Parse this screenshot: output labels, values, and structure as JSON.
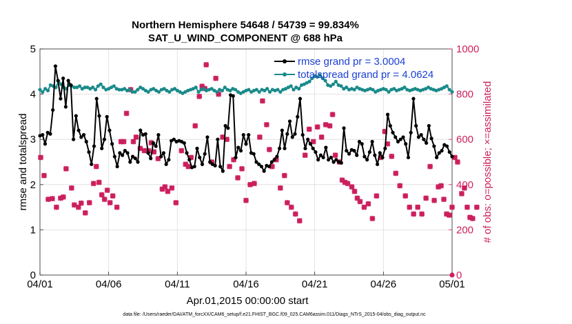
{
  "chart_data": {
    "type": "line",
    "title": "Northern Hemisphere 54648 / 54739 = 99.834%",
    "subtitle": "SAT_U_WIND_COMPONENT @ 688 hPa",
    "xlabel": "Apr.01,2015 00:00:00 start",
    "ylabel": "rmse and totalspread",
    "y2label": "# of obs: o=possible; ×=assimilated",
    "x_tick_labels": [
      "04/01",
      "04/06",
      "04/11",
      "04/16",
      "04/21",
      "04/26",
      "05/01"
    ],
    "x_range_days": [
      0,
      30
    ],
    "ylim": [
      0,
      5
    ],
    "y_ticks": [
      "0",
      "1",
      "2",
      "3",
      "4",
      "5"
    ],
    "y2lim": [
      0,
      1000
    ],
    "y2_ticks": [
      "0",
      "200",
      "400",
      "600",
      "800",
      "1000"
    ],
    "grid": true,
    "legend_position": "top-right",
    "footnote": "data file: /Users/raeder/DAI/ATM_forcXX/CAM6_setup/f.e21.FHIST_BGC.f09_025.CAM6assim.011/Diags_NTrS_2015-04/obs_diag_output.nc",
    "colors": {
      "rmse": "#000000",
      "spread": "#1a8a8a",
      "obs": "#cc1f5e",
      "legend_text": "#1a3fd6"
    },
    "series": [
      {
        "name": "rmse grand pr = 3.0004",
        "axis": "left",
        "values": [
          3.08,
          3.1,
          2.9,
          3.15,
          3.12,
          3.65,
          4.62,
          4.3,
          3.9,
          4.35,
          3.72,
          4.3,
          4.2,
          3.0,
          3.52,
          3.2,
          3.05,
          3.1,
          2.95,
          2.72,
          2.45,
          2.85,
          3.9,
          3.52,
          2.8,
          3.0,
          3.5,
          3.2,
          2.9,
          2.62,
          2.4,
          2.7,
          2.65,
          2.75,
          2.7,
          2.5,
          2.62,
          2.58,
          2.5,
          3.2,
          3.1,
          3.12,
          2.7,
          2.58,
          2.92,
          2.85,
          3.1,
          2.62,
          2.7,
          2.45,
          2.55,
          2.97,
          3.0,
          2.95,
          2.97,
          2.95,
          2.92,
          2.7,
          2.55,
          2.38,
          2.4,
          2.8,
          2.6,
          2.45,
          2.68,
          3.05,
          2.5,
          2.45,
          2.42,
          3.0,
          2.4,
          2.3,
          3.3,
          3.25,
          3.98,
          3.96,
          2.6,
          2.82,
          2.75,
          3.1,
          2.9,
          3.1,
          2.7,
          2.68,
          2.5,
          2.45,
          2.4,
          2.3,
          2.42,
          2.4,
          2.5,
          2.55,
          2.62,
          2.8,
          3.2,
          2.8,
          3.12,
          3.4,
          3.05,
          3.12,
          3.5,
          3.9,
          3.1,
          2.8,
          3.0,
          2.9,
          2.8,
          2.72,
          2.55,
          2.65,
          2.6,
          2.82,
          2.55,
          2.6,
          2.5,
          2.55,
          2.5,
          2.48,
          3.25,
          2.75,
          2.68,
          2.77,
          2.75,
          2.65,
          2.95,
          2.9,
          2.62,
          2.55,
          2.72,
          2.95,
          2.65,
          2.45,
          2.7,
          2.6,
          2.8,
          3.55,
          3.3,
          3.15,
          3.05,
          2.95,
          3.0,
          3.05,
          2.9,
          2.6,
          3.15,
          3.9,
          3.3,
          3.05,
          3.1,
          3.0,
          2.92,
          3.3,
          3.02,
          2.85,
          2.6,
          2.7,
          2.75,
          2.88,
          2.85,
          2.72,
          2.62
        ]
      },
      {
        "name": "totalspread grand pr = 4.0624",
        "axis": "left",
        "values": [
          4.1,
          4.05,
          4.12,
          4.08,
          4.2,
          4.18,
          4.15,
          4.28,
          4.22,
          4.15,
          4.12,
          4.2,
          4.18,
          4.15,
          4.15,
          4.18,
          4.12,
          4.15,
          4.15,
          4.12,
          4.15,
          4.1,
          4.18,
          4.22,
          4.15,
          4.1,
          4.12,
          4.15,
          4.18,
          4.12,
          4.1,
          4.1,
          4.12,
          4.08,
          4.1,
          4.05,
          4.05,
          4.1,
          4.15,
          4.12,
          4.08,
          4.05,
          4.1,
          4.12,
          4.08,
          4.05,
          4.1,
          4.12,
          4.08,
          4.05,
          4.1,
          4.12,
          4.08,
          4.05,
          4.02,
          4.05,
          4.08,
          4.1,
          4.12,
          4.15,
          4.05,
          4.1,
          4.12,
          4.08,
          4.1,
          4.12,
          4.08,
          4.05,
          4.1,
          4.08,
          4.15,
          4.1,
          4.08,
          4.12,
          4.1,
          4.05,
          4.02,
          4.05,
          4.08,
          4.1,
          4.05,
          4.08,
          4.1,
          4.05,
          4.1,
          4.08,
          4.12,
          4.05,
          4.1,
          4.08,
          4.1,
          4.05,
          4.1,
          4.12,
          4.15,
          4.18,
          4.1,
          4.15,
          4.12,
          4.2,
          4.22,
          4.25,
          4.28,
          4.35,
          4.4,
          4.38,
          4.42,
          4.35,
          4.3,
          4.2,
          4.18,
          4.22,
          4.28,
          4.2,
          4.18,
          4.12,
          4.15,
          4.1,
          4.12,
          4.1,
          4.15,
          4.12,
          4.1,
          4.08,
          4.1,
          4.12,
          4.1,
          4.05,
          4.08,
          4.1,
          4.12,
          4.1,
          4.05,
          4.1,
          4.12,
          4.08,
          4.1,
          4.12,
          4.15,
          4.1,
          4.08,
          4.1,
          4.12,
          4.1,
          4.08,
          4.1,
          4.12,
          4.15,
          4.12,
          4.1,
          4.08,
          4.1,
          4.12,
          4.15,
          4.18,
          4.1,
          4.05
        ]
      },
      {
        "name": "obs assimilated",
        "axis": "right",
        "marker": "x",
        "points": [
          [
            0.05,
            520
          ],
          [
            0.3,
            440
          ],
          [
            0.6,
            335
          ],
          [
            0.9,
            338
          ],
          [
            1.2,
            300
          ],
          [
            1.5,
            340
          ],
          [
            1.7,
            345
          ],
          [
            1.9,
            470
          ],
          [
            2.3,
            385
          ],
          [
            2.5,
            310
          ],
          [
            2.8,
            300
          ],
          [
            3.0,
            318
          ],
          [
            3.3,
            275
          ],
          [
            3.6,
            320
          ],
          [
            3.9,
            405
          ],
          [
            4.1,
            480
          ],
          [
            4.3,
            410
          ],
          [
            4.5,
            355
          ],
          [
            4.7,
            335
          ],
          [
            4.9,
            375
          ],
          [
            5.1,
            320
          ],
          [
            5.3,
            350
          ],
          [
            5.6,
            300
          ],
          [
            5.9,
            590
          ],
          [
            6.1,
            590
          ],
          [
            6.3,
            715
          ],
          [
            6.6,
            820
          ],
          [
            6.8,
            590
          ],
          [
            7.0,
            610
          ],
          [
            7.3,
            560
          ],
          [
            7.6,
            550
          ],
          [
            7.9,
            550
          ],
          [
            8.1,
            585
          ],
          [
            8.3,
            545
          ],
          [
            8.6,
            515
          ],
          [
            8.9,
            380
          ],
          [
            9.1,
            390
          ],
          [
            9.3,
            370
          ],
          [
            9.6,
            385
          ],
          [
            9.9,
            320
          ],
          [
            10.3,
            550
          ],
          [
            10.6,
            490
          ],
          [
            10.8,
            480
          ],
          [
            11.0,
            520
          ],
          [
            11.3,
            660
          ],
          [
            11.6,
            790
          ],
          [
            11.8,
            835
          ],
          [
            12.0,
            825
          ],
          [
            12.1,
            930
          ],
          [
            12.5,
            500
          ],
          [
            12.8,
            870
          ],
          [
            13.0,
            800
          ],
          [
            13.3,
            610
          ],
          [
            13.6,
            600
          ],
          [
            13.8,
            480
          ],
          [
            14.1,
            510
          ],
          [
            14.4,
            430
          ],
          [
            14.7,
            470
          ],
          [
            15.0,
            330
          ],
          [
            15.3,
            400
          ],
          [
            15.6,
            405
          ],
          [
            16.0,
            610
          ],
          [
            16.2,
            770
          ],
          [
            16.5,
            665
          ],
          [
            16.7,
            555
          ],
          [
            16.9,
            480
          ],
          [
            17.2,
            510
          ],
          [
            17.5,
            385
          ],
          [
            17.8,
            440
          ],
          [
            18.0,
            320
          ],
          [
            18.3,
            300
          ],
          [
            18.6,
            270
          ],
          [
            18.9,
            240
          ],
          [
            19.3,
            530
          ],
          [
            19.6,
            645
          ],
          [
            19.9,
            590
          ],
          [
            20.2,
            655
          ],
          [
            20.5,
            610
          ],
          [
            20.8,
            665
          ],
          [
            21.1,
            660
          ],
          [
            21.3,
            710
          ],
          [
            21.5,
            530
          ],
          [
            21.8,
            500
          ],
          [
            22.0,
            420
          ],
          [
            22.2,
            410
          ],
          [
            22.4,
            405
          ],
          [
            22.7,
            390
          ],
          [
            22.9,
            370
          ],
          [
            23.1,
            340
          ],
          [
            23.3,
            325
          ],
          [
            23.6,
            300
          ],
          [
            23.9,
            315
          ],
          [
            24.2,
            250
          ],
          [
            24.5,
            350
          ],
          [
            24.8,
            520
          ],
          [
            25.1,
            635
          ],
          [
            25.3,
            580
          ],
          [
            25.6,
            525
          ],
          [
            25.9,
            450
          ],
          [
            26.2,
            395
          ],
          [
            26.6,
            350
          ],
          [
            26.9,
            300
          ],
          [
            27.2,
            270
          ],
          [
            27.5,
            300
          ],
          [
            27.8,
            270
          ],
          [
            28.1,
            340
          ],
          [
            28.4,
            480
          ],
          [
            28.7,
            330
          ],
          [
            29.0,
            390
          ],
          [
            29.2,
            395
          ],
          [
            29.4,
            335
          ],
          [
            29.6,
            270
          ],
          [
            29.8,
            265
          ],
          [
            30.0,
            300
          ],
          [
            30.2,
            520
          ],
          [
            30.4,
            500
          ],
          [
            30.7,
            360
          ],
          [
            30.9,
            385
          ],
          [
            31.1,
            300
          ],
          [
            31.3,
            255
          ],
          [
            31.5,
            250
          ],
          [
            31.8,
            300
          ]
        ]
      },
      {
        "name": "obs possible",
        "axis": "right",
        "marker": "o",
        "points": [
          [
            30.0,
            0
          ]
        ]
      }
    ]
  }
}
